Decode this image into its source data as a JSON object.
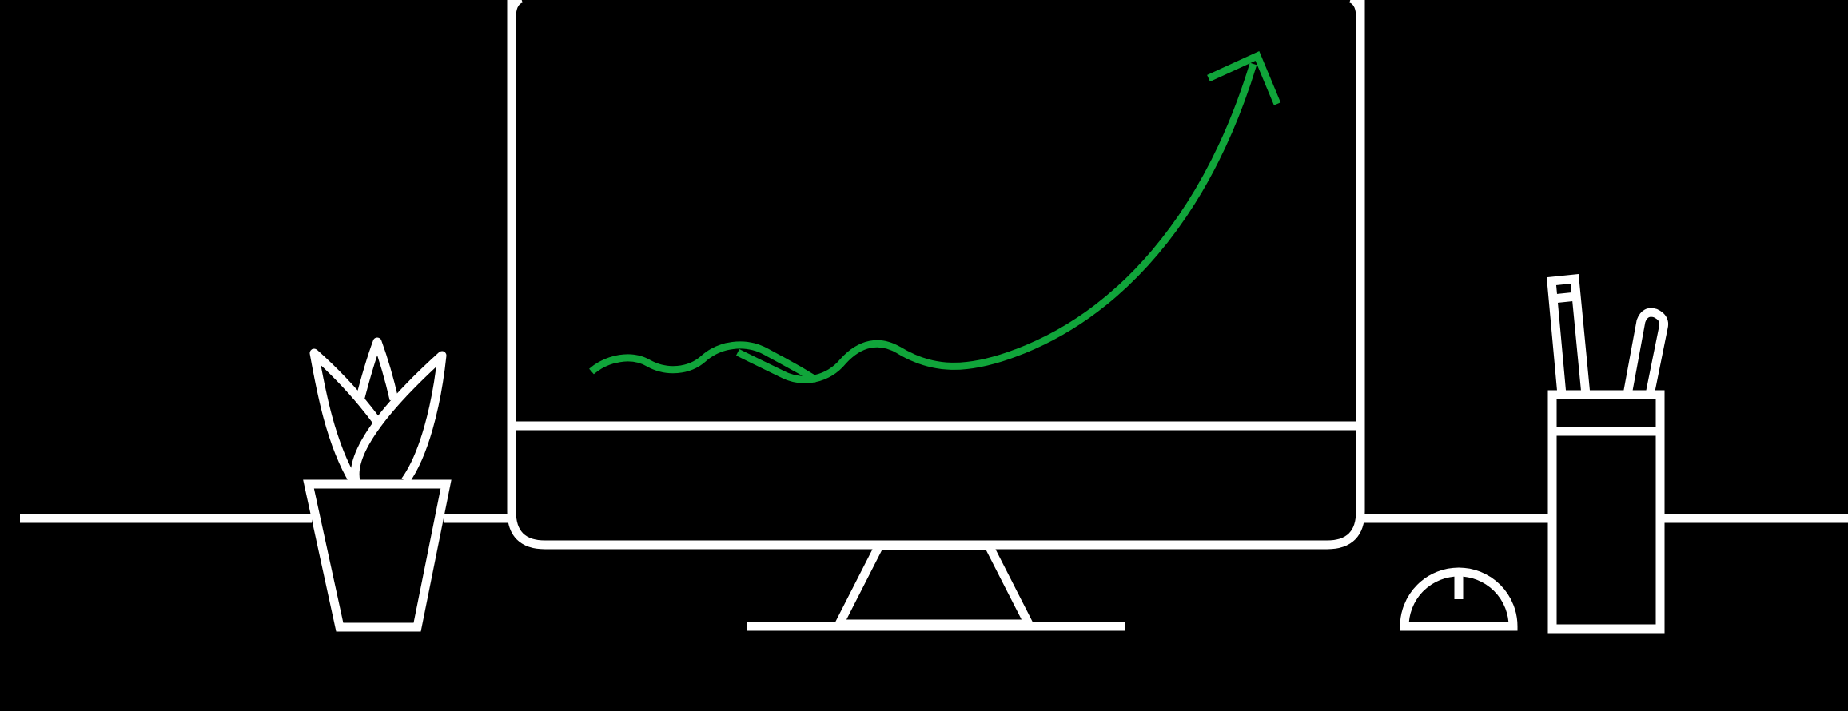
{
  "scene": {
    "description_free": true,
    "colors": {
      "background": "#000000",
      "line": "#ffffff",
      "accent": "#10a53a"
    },
    "icons": [
      "desk-line",
      "monitor-icon",
      "monitor-stand-icon",
      "trend-arrow-icon",
      "plant-pot-icon",
      "pencil-cup-icon",
      "pencil-icon",
      "pen-icon",
      "desk-lamp-icon"
    ]
  }
}
